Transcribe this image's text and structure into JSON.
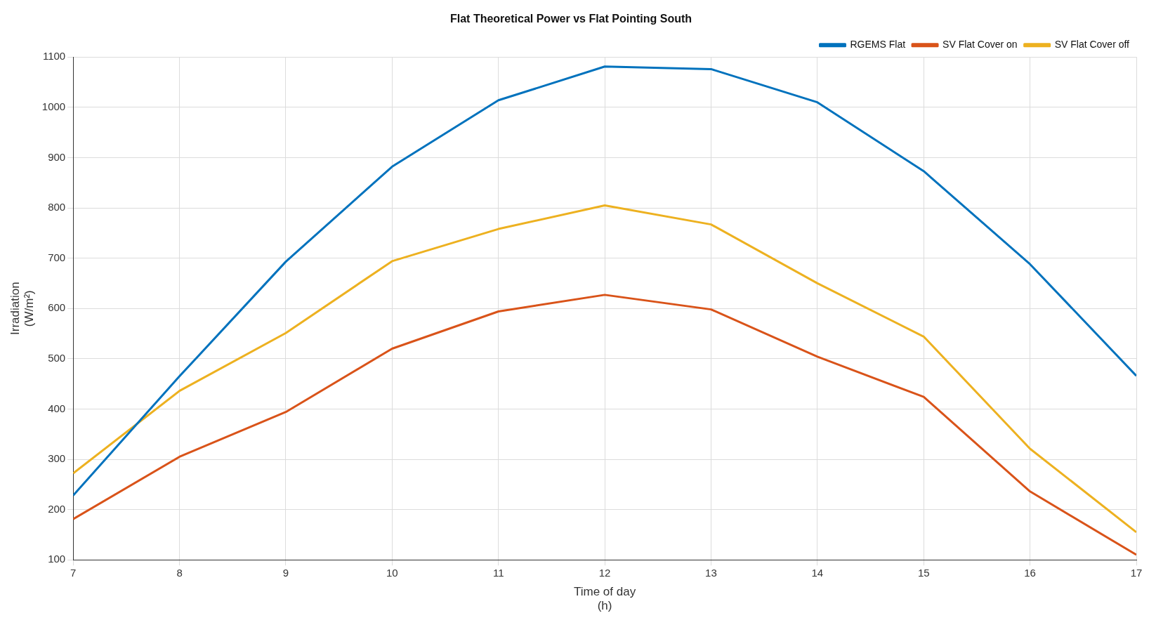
{
  "chart_data": {
    "type": "line",
    "title": "Flat Theoretical Power vs Flat Pointing South",
    "xlabel": "Time of day\n(h)",
    "ylabel": "Irradiation\n(W/m²)",
    "x": [
      7,
      8,
      9,
      10,
      11,
      12,
      13,
      14,
      15,
      16,
      17
    ],
    "series": [
      {
        "name": "RGEMS Flat",
        "color": "#0072bd",
        "values": [
          228,
          465,
          693,
          882,
          1014,
          1081,
          1076,
          1010,
          873,
          688,
          466
        ]
      },
      {
        "name": "SV Flat Cover on",
        "color": "#d95319",
        "values": [
          181,
          305,
          394,
          520,
          594,
          627,
          598,
          504,
          424,
          236,
          110
        ]
      },
      {
        "name": "SV Flat Cover off",
        "color": "#edb120",
        "values": [
          272,
          436,
          551,
          694,
          758,
          805,
          767,
          650,
          544,
          321,
          155
        ]
      }
    ],
    "xlim": [
      7,
      17
    ],
    "xticks": [
      7,
      8,
      9,
      10,
      11,
      12,
      13,
      14,
      15,
      16,
      17
    ],
    "ylim": [
      100,
      1100
    ],
    "yticks": [
      100,
      200,
      300,
      400,
      500,
      600,
      700,
      800,
      900,
      1000,
      1100
    ],
    "grid": true,
    "legend": "top right",
    "marker": "none",
    "line_style": "solid"
  }
}
